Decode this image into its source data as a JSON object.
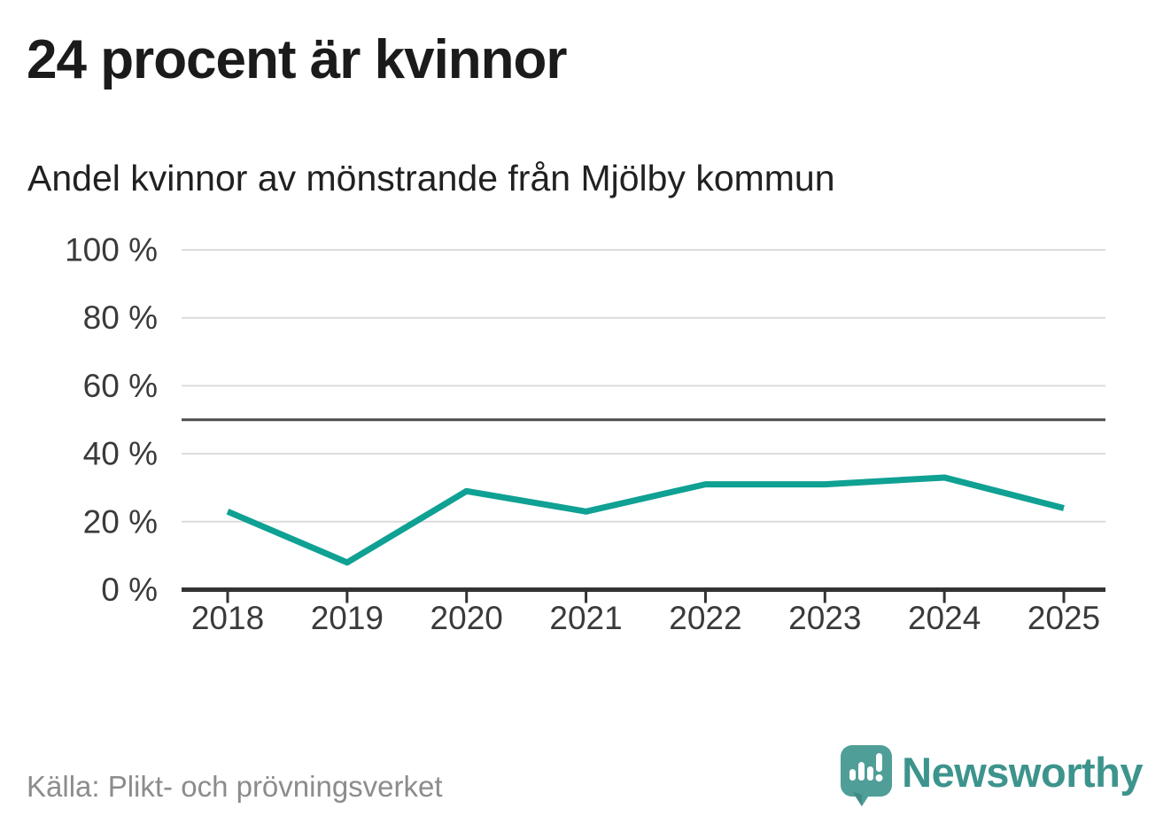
{
  "header": {
    "title": "24 procent är kvinnor",
    "subtitle": "Andel kvinnor av mönstrande från Mjölby kommun"
  },
  "footer": {
    "source": "Källa: Plikt- och prövningsverket",
    "brand_name": "Newsworthy",
    "brand_icon": "newsworthy-speech-bubble-bar-chart-icon"
  },
  "colors": {
    "line": "#0fa193",
    "grid": "#dcdcdc",
    "reference_line": "#4d4d4d",
    "axis": "#333333",
    "tick_text": "#3a3a3a",
    "title_text": "#1b1b1b",
    "source_text": "#8c8c8c",
    "brand_teal": "#3d948d",
    "brand_icon_bg": "#4f9e97"
  },
  "chart_data": {
    "type": "line",
    "title": "24 procent är kvinnor",
    "subtitle": "Andel kvinnor av mönstrande från Mjölby kommun",
    "categories": [
      "2018",
      "2019",
      "2020",
      "2021",
      "2022",
      "2023",
      "2024",
      "2025"
    ],
    "series": [
      {
        "name": "Andel kvinnor av mönstrande",
        "values": [
          23,
          8,
          29,
          23,
          31,
          31,
          33,
          24
        ]
      }
    ],
    "unit": "%",
    "xlabel": "",
    "ylabel": "",
    "ylim": [
      0,
      100
    ],
    "yticks": [
      0,
      20,
      40,
      60,
      80,
      100
    ],
    "ytick_suffix": " %",
    "reference_line": 50,
    "grid": true,
    "legend": "none",
    "source": "Källa: Plikt- och prövningsverket"
  }
}
